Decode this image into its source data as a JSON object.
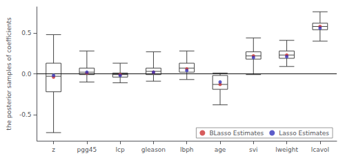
{
  "chart_data": {
    "type": "box",
    "ylabel": "the posterior samples of coefficients",
    "categories": [
      "z",
      "pgg45",
      "lcp",
      "gleason",
      "lbph",
      "age",
      "svi",
      "lweight",
      "lcavol"
    ],
    "ylim": [
      -0.82,
      0.82
    ],
    "yticks": [
      -0.5,
      {
        "value": 0,
        "label": "0.0"
      },
      0.5
    ],
    "grid": false,
    "legend": "lower right",
    "reference_line": {
      "y": 0,
      "color": "#111111"
    },
    "series": [
      {
        "type": "boxplot",
        "color": "#444444",
        "values": [
          {
            "q1": -0.22,
            "med": -0.03,
            "q3": 0.13,
            "whislo": -0.72,
            "whishi": 0.48
          },
          {
            "q1": -0.01,
            "med": 0.02,
            "q3": 0.07,
            "whislo": -0.1,
            "whishi": 0.28
          },
          {
            "q1": -0.04,
            "med": -0.01,
            "q3": 0.01,
            "whislo": -0.11,
            "whishi": 0.13
          },
          {
            "q1": -0.01,
            "med": 0.03,
            "q3": 0.07,
            "whislo": -0.09,
            "whishi": 0.27
          },
          {
            "q1": 0.02,
            "med": 0.07,
            "q3": 0.13,
            "whislo": -0.07,
            "whishi": 0.28
          },
          {
            "q1": -0.19,
            "med": -0.13,
            "q3": -0.02,
            "whislo": -0.38,
            "whishi": 0.01
          },
          {
            "q1": 0.18,
            "med": 0.22,
            "q3": 0.27,
            "whislo": -0.01,
            "whishi": 0.44
          },
          {
            "q1": 0.19,
            "med": 0.23,
            "q3": 0.28,
            "whislo": 0.09,
            "whishi": 0.41
          },
          {
            "q1": 0.54,
            "med": 0.58,
            "q3": 0.62,
            "whislo": 0.4,
            "whishi": 0.76
          }
        ]
      },
      {
        "type": "scatter",
        "name": "BLasso Estimates",
        "color": "#cc3333",
        "marker": "circle",
        "values": [
          -0.04,
          0.01,
          -0.01,
          0.02,
          0.06,
          -0.13,
          0.22,
          0.23,
          0.58
        ]
      },
      {
        "type": "scatter",
        "name": "Lasso Estimates",
        "color": "#3333bb",
        "marker": "circle",
        "values": [
          -0.02,
          0.02,
          -0.02,
          0.02,
          0.04,
          -0.1,
          0.2,
          0.21,
          0.56
        ]
      }
    ]
  }
}
